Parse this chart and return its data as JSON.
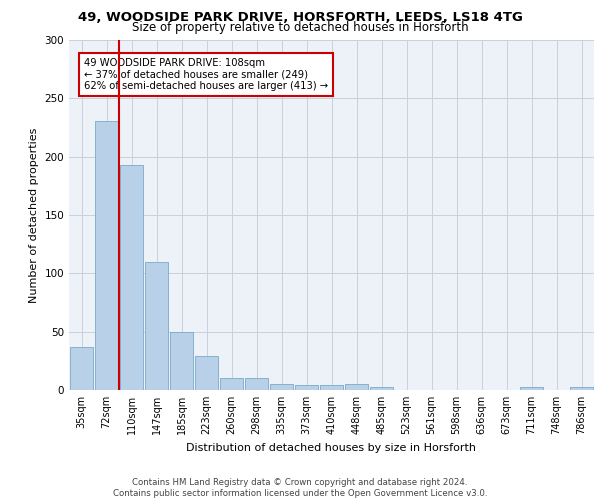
{
  "title1": "49, WOODSIDE PARK DRIVE, HORSFORTH, LEEDS, LS18 4TG",
  "title2": "Size of property relative to detached houses in Horsforth",
  "xlabel": "Distribution of detached houses by size in Horsforth",
  "ylabel": "Number of detached properties",
  "bin_labels": [
    "35sqm",
    "72sqm",
    "110sqm",
    "147sqm",
    "185sqm",
    "223sqm",
    "260sqm",
    "298sqm",
    "335sqm",
    "373sqm",
    "410sqm",
    "448sqm",
    "485sqm",
    "523sqm",
    "561sqm",
    "598sqm",
    "636sqm",
    "673sqm",
    "711sqm",
    "748sqm",
    "786sqm"
  ],
  "bar_values": [
    37,
    231,
    193,
    110,
    50,
    29,
    10,
    10,
    5,
    4,
    4,
    5,
    3,
    0,
    0,
    0,
    0,
    0,
    3,
    0,
    3
  ],
  "bar_color": "#b8d0e8",
  "bar_edge_color": "#7aaac8",
  "vline_color": "#cc0000",
  "annotation_text": "49 WOODSIDE PARK DRIVE: 108sqm\n← 37% of detached houses are smaller (249)\n62% of semi-detached houses are larger (413) →",
  "annotation_box_color": "#ffffff",
  "annotation_box_edge": "#cc0000",
  "ylim": [
    0,
    300
  ],
  "yticks": [
    0,
    50,
    100,
    150,
    200,
    250,
    300
  ],
  "footer": "Contains HM Land Registry data © Crown copyright and database right 2024.\nContains public sector information licensed under the Open Government Licence v3.0.",
  "bg_color": "#edf2f9",
  "grid_color": "#c8d0dc",
  "title1_fontsize": 9.5,
  "title2_fontsize": 8.5,
  "xlabel_fontsize": 8,
  "ylabel_fontsize": 8,
  "footer_fontsize": 6.2,
  "tick_fontsize": 7
}
